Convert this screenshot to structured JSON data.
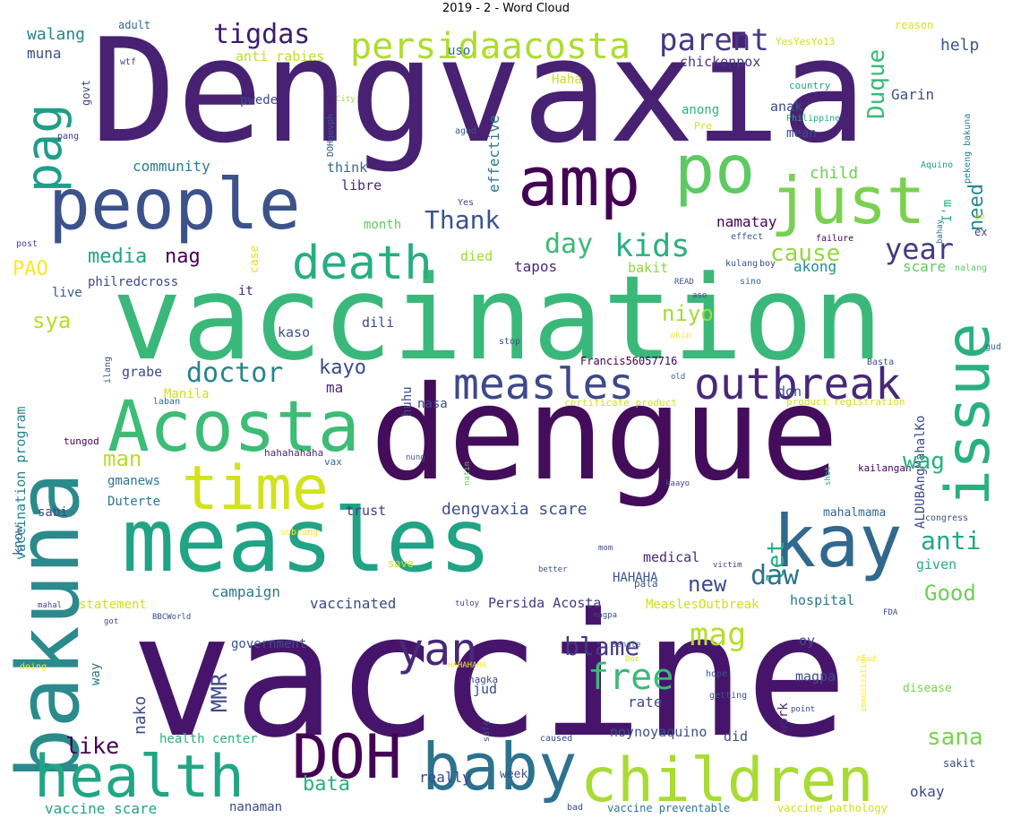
{
  "title": "2019 - 2 - Word Cloud",
  "palette": {
    "c1": "#440154",
    "c2": "#472c7a",
    "c3": "#3b528b",
    "c4": "#2c728e",
    "c5": "#21908d",
    "c6": "#27ad81",
    "c7": "#5cc863",
    "c8": "#aadc32",
    "c9": "#fde725"
  },
  "words": [
    "Dengvaxia",
    "vaccination",
    "vaccine",
    "dengue",
    "bakuna",
    "measles",
    "Acosta",
    "people",
    "amp",
    "po",
    "just",
    "issue",
    "kay",
    "time",
    "health",
    "children",
    "baby",
    "DOH",
    "outbreak",
    "death",
    "pag",
    "persidaacosta",
    "tigdas",
    "parent",
    "walang",
    "adult",
    "wtf",
    "govt",
    "pang",
    "muna",
    "anti rabies",
    "uso",
    "gi",
    "Haha",
    "chickenpox",
    "YesYesYo13",
    "reason",
    "help",
    "Duque",
    "Garin",
    "country",
    "Philippine",
    "anak",
    "anong",
    "pwede",
    "City",
    "DOHgovph",
    "agad",
    "Pre",
    "mean",
    "pekeng bakuna",
    "Aquino",
    "effective",
    "community",
    "think",
    "libre",
    "Thank",
    "child",
    "need",
    "I'm",
    "eh",
    "ex",
    "Yes",
    "bahay",
    "post",
    "month",
    "namatay",
    "effect",
    "failure",
    "kids",
    "day",
    "cause",
    "year",
    "media",
    "nag",
    "PAO",
    "died",
    "case",
    "kulang",
    "boy",
    "nalang",
    "tapos",
    "bakit",
    "akong",
    "scare",
    "philredcross",
    "READ",
    "sino",
    "aso",
    "live",
    "it",
    "sya",
    "niyo",
    "vaccination program",
    "kaso",
    "dili",
    "stop",
    "akin",
    "gud",
    "doctor",
    "kayo",
    "ilang",
    "Francis56057716",
    "old",
    "Basta",
    "grabe",
    "ma",
    "huhu",
    "laban",
    "Manila",
    "certificate product",
    "nasa",
    "product registration",
    "ALDUBAngMahalKo",
    "don",
    "tungod",
    "hahahahaha",
    "vax",
    "nung",
    "natin",
    "kailangan",
    "shot",
    "man",
    "wag",
    "anti",
    "let",
    "know",
    "gmanews",
    "sabi",
    "Duterte",
    "trust",
    "dengvaxia scare",
    "sobrang",
    "kaayo",
    "mahal",
    "mama",
    "congress",
    "new",
    "daw",
    "mom",
    "save",
    "pala",
    "better",
    "victim",
    "given",
    "medical",
    "Good",
    "HAHAHA",
    "campaign",
    "vaccinated",
    "Persida Acosta",
    "statement",
    "MeaslesOutbreak",
    "hospital",
    "FDA",
    "mahal",
    "got",
    "BBCWorld",
    "tuloy",
    "nagpa",
    "yan",
    "mag",
    "blame",
    "free",
    "government",
    "oy",
    "Senate",
    "Doc",
    "Abad",
    "immunization",
    "HAHAHAHA",
    "way",
    "doing",
    "nako",
    "jud",
    "nagka",
    "hope",
    "magpa",
    "MMR",
    "rate",
    "getting",
    "disease",
    "point",
    "like",
    "work",
    "safe",
    "health center",
    "did",
    "noynoyaquino",
    "sana",
    "caused",
    "sakit",
    "bata",
    "really",
    "week",
    "okay",
    "vaccine scare",
    "nanaman",
    "bad",
    "vaccine preventable",
    "vaccine pathology"
  ]
}
